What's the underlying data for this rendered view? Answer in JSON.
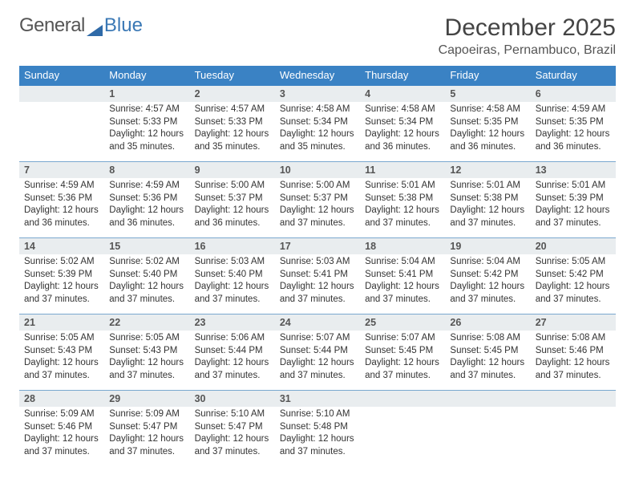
{
  "logo": {
    "general": "General",
    "blue": "Blue"
  },
  "title": "December 2025",
  "subtitle": "Capoeiras, Pernambuco, Brazil",
  "colors": {
    "header_bg": "#3a82c4",
    "header_text": "#ffffff",
    "daynum_bg": "#e9edef",
    "rule": "#3a82c4",
    "rule_light": "#7aa8cf"
  },
  "weekdays": [
    "Sunday",
    "Monday",
    "Tuesday",
    "Wednesday",
    "Thursday",
    "Friday",
    "Saturday"
  ],
  "weeks": [
    {
      "nums": [
        "",
        "1",
        "2",
        "3",
        "4",
        "5",
        "6"
      ],
      "info": [
        {},
        {
          "sunrise": "4:57 AM",
          "sunset": "5:33 PM",
          "dlh": "12",
          "dlm": "35"
        },
        {
          "sunrise": "4:57 AM",
          "sunset": "5:33 PM",
          "dlh": "12",
          "dlm": "35"
        },
        {
          "sunrise": "4:58 AM",
          "sunset": "5:34 PM",
          "dlh": "12",
          "dlm": "35"
        },
        {
          "sunrise": "4:58 AM",
          "sunset": "5:34 PM",
          "dlh": "12",
          "dlm": "36"
        },
        {
          "sunrise": "4:58 AM",
          "sunset": "5:35 PM",
          "dlh": "12",
          "dlm": "36"
        },
        {
          "sunrise": "4:59 AM",
          "sunset": "5:35 PM",
          "dlh": "12",
          "dlm": "36"
        }
      ]
    },
    {
      "nums": [
        "7",
        "8",
        "9",
        "10",
        "11",
        "12",
        "13"
      ],
      "info": [
        {
          "sunrise": "4:59 AM",
          "sunset": "5:36 PM",
          "dlh": "12",
          "dlm": "36"
        },
        {
          "sunrise": "4:59 AM",
          "sunset": "5:36 PM",
          "dlh": "12",
          "dlm": "36"
        },
        {
          "sunrise": "5:00 AM",
          "sunset": "5:37 PM",
          "dlh": "12",
          "dlm": "36"
        },
        {
          "sunrise": "5:00 AM",
          "sunset": "5:37 PM",
          "dlh": "12",
          "dlm": "37"
        },
        {
          "sunrise": "5:01 AM",
          "sunset": "5:38 PM",
          "dlh": "12",
          "dlm": "37"
        },
        {
          "sunrise": "5:01 AM",
          "sunset": "5:38 PM",
          "dlh": "12",
          "dlm": "37"
        },
        {
          "sunrise": "5:01 AM",
          "sunset": "5:39 PM",
          "dlh": "12",
          "dlm": "37"
        }
      ]
    },
    {
      "nums": [
        "14",
        "15",
        "16",
        "17",
        "18",
        "19",
        "20"
      ],
      "info": [
        {
          "sunrise": "5:02 AM",
          "sunset": "5:39 PM",
          "dlh": "12",
          "dlm": "37"
        },
        {
          "sunrise": "5:02 AM",
          "sunset": "5:40 PM",
          "dlh": "12",
          "dlm": "37"
        },
        {
          "sunrise": "5:03 AM",
          "sunset": "5:40 PM",
          "dlh": "12",
          "dlm": "37"
        },
        {
          "sunrise": "5:03 AM",
          "sunset": "5:41 PM",
          "dlh": "12",
          "dlm": "37"
        },
        {
          "sunrise": "5:04 AM",
          "sunset": "5:41 PM",
          "dlh": "12",
          "dlm": "37"
        },
        {
          "sunrise": "5:04 AM",
          "sunset": "5:42 PM",
          "dlh": "12",
          "dlm": "37"
        },
        {
          "sunrise": "5:05 AM",
          "sunset": "5:42 PM",
          "dlh": "12",
          "dlm": "37"
        }
      ]
    },
    {
      "nums": [
        "21",
        "22",
        "23",
        "24",
        "25",
        "26",
        "27"
      ],
      "info": [
        {
          "sunrise": "5:05 AM",
          "sunset": "5:43 PM",
          "dlh": "12",
          "dlm": "37"
        },
        {
          "sunrise": "5:05 AM",
          "sunset": "5:43 PM",
          "dlh": "12",
          "dlm": "37"
        },
        {
          "sunrise": "5:06 AM",
          "sunset": "5:44 PM",
          "dlh": "12",
          "dlm": "37"
        },
        {
          "sunrise": "5:07 AM",
          "sunset": "5:44 PM",
          "dlh": "12",
          "dlm": "37"
        },
        {
          "sunrise": "5:07 AM",
          "sunset": "5:45 PM",
          "dlh": "12",
          "dlm": "37"
        },
        {
          "sunrise": "5:08 AM",
          "sunset": "5:45 PM",
          "dlh": "12",
          "dlm": "37"
        },
        {
          "sunrise": "5:08 AM",
          "sunset": "5:46 PM",
          "dlh": "12",
          "dlm": "37"
        }
      ]
    },
    {
      "nums": [
        "28",
        "29",
        "30",
        "31",
        "",
        "",
        ""
      ],
      "info": [
        {
          "sunrise": "5:09 AM",
          "sunset": "5:46 PM",
          "dlh": "12",
          "dlm": "37"
        },
        {
          "sunrise": "5:09 AM",
          "sunset": "5:47 PM",
          "dlh": "12",
          "dlm": "37"
        },
        {
          "sunrise": "5:10 AM",
          "sunset": "5:47 PM",
          "dlh": "12",
          "dlm": "37"
        },
        {
          "sunrise": "5:10 AM",
          "sunset": "5:48 PM",
          "dlh": "12",
          "dlm": "37"
        },
        {},
        {},
        {}
      ]
    }
  ],
  "labels": {
    "sunrise": "Sunrise:",
    "sunset": "Sunset:",
    "daylight_prefix": "Daylight:",
    "hours_word": "hours",
    "and_word": "and",
    "minutes_word": "minutes."
  }
}
